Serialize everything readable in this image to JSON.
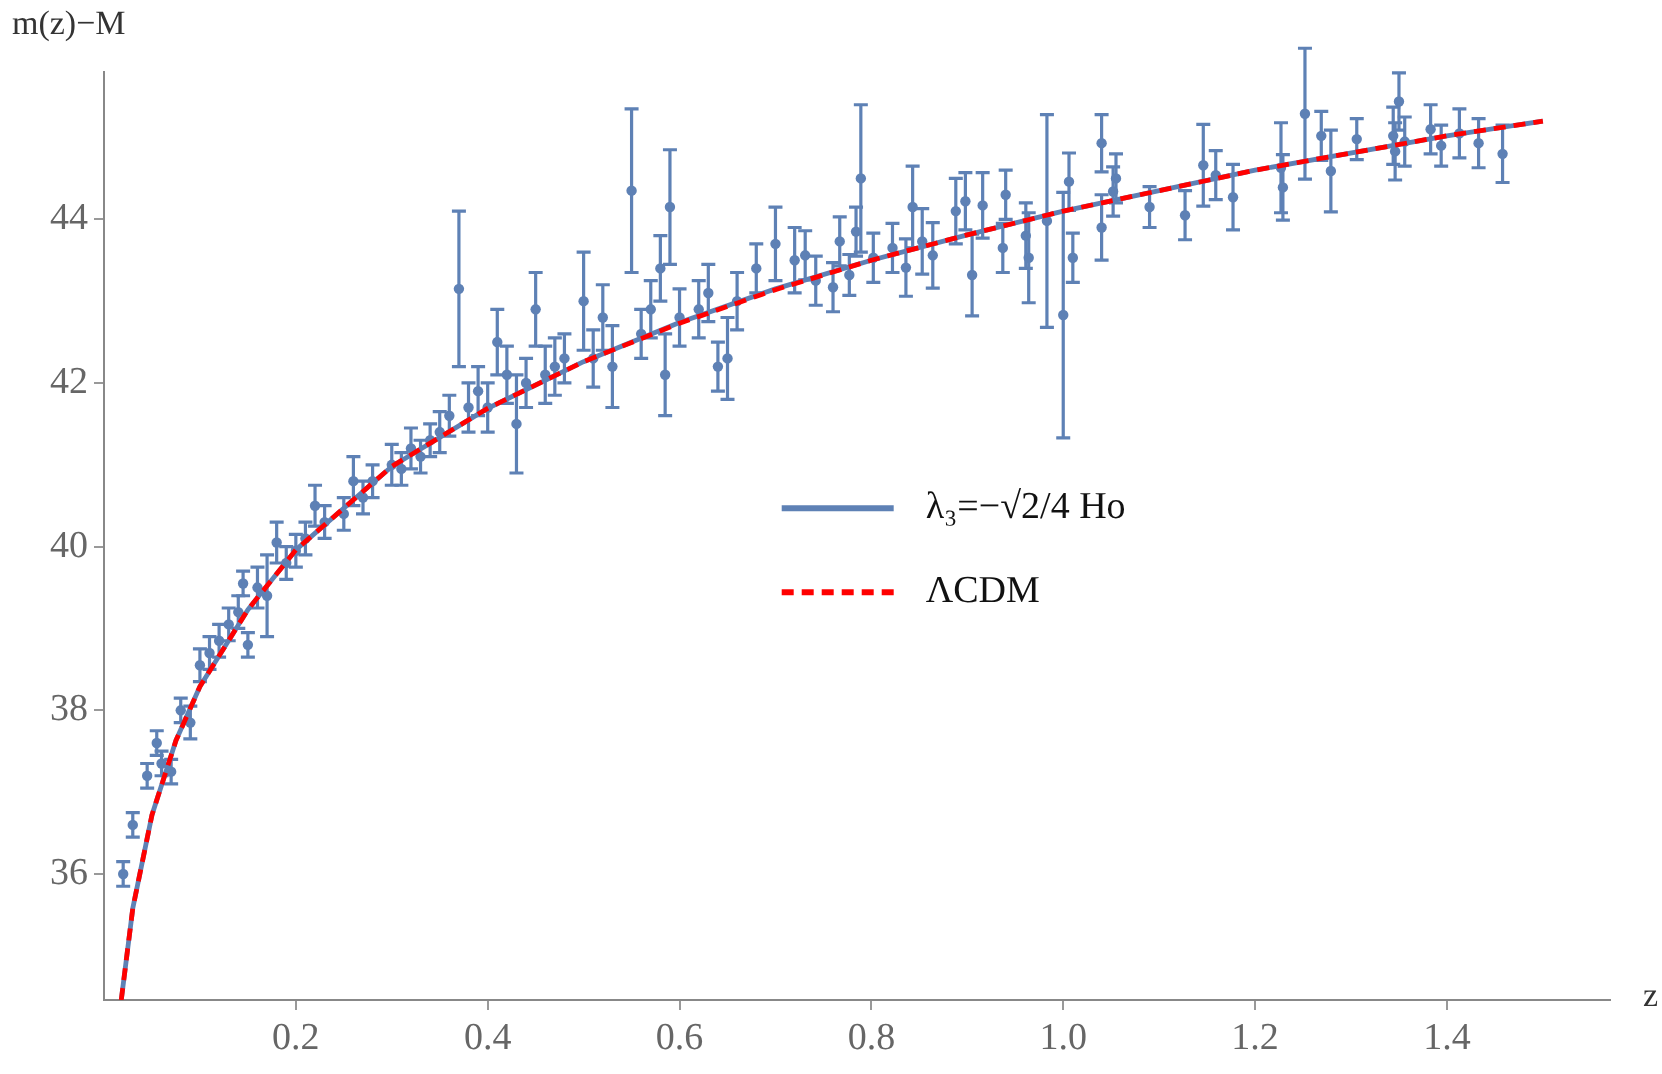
{
  "chart_data": {
    "type": "scatter",
    "xlabel": "z",
    "ylabel": "m(z)−M",
    "xlim": [
      0,
      1.57
    ],
    "ylim": [
      34.46,
      45.8
    ],
    "xticks": [
      0.2,
      0.4,
      0.6,
      0.8,
      {
        "value": 1,
        "label": "1.0"
      },
      1.2,
      1.4
    ],
    "yticks": [
      36,
      38,
      40,
      42,
      44
    ],
    "grid": false,
    "legend": "right",
    "marker": "circle",
    "series": [
      {
        "color": "#5e81b5",
        "x": [
          0.02,
          0.03,
          0.045,
          0.055,
          0.06,
          0.07,
          0.08,
          0.09,
          0.1,
          0.11,
          0.12,
          0.13,
          0.14,
          0.145,
          0.15,
          0.16,
          0.17,
          0.18,
          0.19,
          0.2,
          0.21,
          0.22,
          0.23,
          0.25,
          0.26,
          0.27,
          0.28,
          0.3,
          0.31,
          0.32,
          0.33,
          0.34,
          0.35,
          0.36,
          0.37,
          0.38,
          0.39,
          0.4,
          0.41,
          0.42,
          0.43,
          0.44,
          0.45,
          0.46,
          0.47,
          0.48,
          0.5,
          0.51,
          0.52,
          0.53,
          0.55,
          0.56,
          0.57,
          0.58,
          0.585,
          0.59,
          0.6,
          0.62,
          0.63,
          0.64,
          0.65,
          0.66,
          0.68,
          0.7,
          0.72,
          0.731,
          0.742,
          0.76,
          0.767,
          0.777,
          0.784,
          0.789,
          0.802,
          0.822,
          0.836,
          0.843,
          0.853,
          0.864,
          0.888,
          0.898,
          0.905,
          0.916,
          0.937,
          0.94,
          0.961,
          0.964,
          0.983,
          1.0,
          1.006,
          1.01,
          1.04,
          1.04,
          1.052,
          1.055,
          1.09,
          1.127,
          1.146,
          1.159,
          1.177,
          1.227,
          1.229,
          1.252,
          1.269,
          1.279,
          1.306,
          1.344,
          1.346,
          1.35,
          1.356,
          1.383,
          1.394,
          1.413,
          1.433,
          1.458
        ],
        "values": [
          36.0,
          36.6,
          37.2,
          37.6,
          37.35,
          37.25,
          38.0,
          37.85,
          38.55,
          38.7,
          38.85,
          39.05,
          39.2,
          39.55,
          38.8,
          39.5,
          39.4,
          40.05,
          39.8,
          39.95,
          40.1,
          40.5,
          40.3,
          40.4,
          40.8,
          40.6,
          40.8,
          41.0,
          40.95,
          41.2,
          41.1,
          41.3,
          41.4,
          41.6,
          43.15,
          41.7,
          41.9,
          41.7,
          42.5,
          42.1,
          41.5,
          42.0,
          42.9,
          42.1,
          42.2,
          42.3,
          43.0,
          42.3,
          42.8,
          42.2,
          44.35,
          42.6,
          42.9,
          43.4,
          42.1,
          44.15,
          42.8,
          42.9,
          43.1,
          42.2,
          42.3,
          43.0,
          43.4,
          43.7,
          43.5,
          43.56,
          43.25,
          43.17,
          43.73,
          43.32,
          43.85,
          44.5,
          43.53,
          43.65,
          43.41,
          44.15,
          43.73,
          43.56,
          44.1,
          44.22,
          43.32,
          44.17,
          43.65,
          44.3,
          43.8,
          43.53,
          43.98,
          42.83,
          44.46,
          43.53,
          44.93,
          43.9,
          44.34,
          44.5,
          44.15,
          44.05,
          44.66,
          44.54,
          44.27,
          44.63,
          44.39,
          45.29,
          45.02,
          44.59,
          44.98,
          45.02,
          44.83,
          45.44,
          44.95,
          45.1,
          44.9,
          45.05,
          44.93,
          44.8
        ],
        "errors": [
          0.15,
          0.15,
          0.15,
          0.15,
          0.15,
          0.15,
          0.15,
          0.2,
          0.2,
          0.2,
          0.2,
          0.2,
          0.2,
          0.15,
          0.15,
          0.25,
          0.5,
          0.25,
          0.2,
          0.2,
          0.2,
          0.25,
          0.2,
          0.2,
          0.3,
          0.2,
          0.2,
          0.25,
          0.2,
          0.25,
          0.2,
          0.2,
          0.25,
          0.25,
          0.95,
          0.3,
          0.3,
          0.3,
          0.4,
          0.35,
          0.6,
          0.3,
          0.45,
          0.35,
          0.35,
          0.3,
          0.6,
          0.35,
          0.4,
          0.5,
          1.0,
          0.3,
          0.35,
          0.4,
          0.5,
          0.7,
          0.35,
          0.35,
          0.35,
          0.3,
          0.5,
          0.35,
          0.3,
          0.45,
          0.4,
          0.3,
          0.3,
          0.3,
          0.3,
          0.25,
          0.3,
          0.9,
          0.3,
          0.3,
          0.35,
          0.5,
          0.4,
          0.4,
          0.4,
          0.35,
          0.5,
          0.4,
          0.3,
          0.3,
          0.4,
          0.55,
          1.3,
          1.5,
          0.35,
          0.3,
          0.35,
          0.4,
          0.3,
          0.3,
          0.25,
          0.3,
          0.5,
          0.3,
          0.4,
          0.55,
          0.4,
          0.8,
          0.3,
          0.5,
          0.25,
          0.35,
          0.35,
          0.35,
          0.3,
          0.3,
          0.25,
          0.3,
          0.3,
          0.35
        ]
      },
      {
        "type": "line",
        "name": "λ₃=−√2/4 Ho",
        "color": "#5e81b5",
        "line_style": "solid",
        "marker": "none",
        "x": [
          0.018,
          0.03,
          0.05,
          0.075,
          0.1,
          0.15,
          0.2,
          0.3,
          0.4,
          0.5,
          0.6,
          0.7,
          0.8,
          0.9,
          1.0,
          1.2,
          1.4,
          1.5
        ],
        "values": [
          34.46,
          35.58,
          36.72,
          37.63,
          38.29,
          39.23,
          39.96,
          40.98,
          41.69,
          42.26,
          42.74,
          43.15,
          43.5,
          43.81,
          44.1,
          44.6,
          45.02,
          45.2
        ]
      },
      {
        "type": "line",
        "name": "ΛCDM",
        "color": "#ff0000",
        "line_style": "dashed",
        "marker": "none",
        "x": [
          0.018,
          0.03,
          0.05,
          0.075,
          0.1,
          0.15,
          0.2,
          0.3,
          0.4,
          0.5,
          0.6,
          0.7,
          0.8,
          0.9,
          1.0,
          1.2,
          1.4,
          1.5
        ],
        "values": [
          34.46,
          35.58,
          36.72,
          37.63,
          38.29,
          39.23,
          39.96,
          40.98,
          41.69,
          42.26,
          42.73,
          43.14,
          43.5,
          43.81,
          44.1,
          44.6,
          45.02,
          45.2
        ]
      }
    ]
  }
}
